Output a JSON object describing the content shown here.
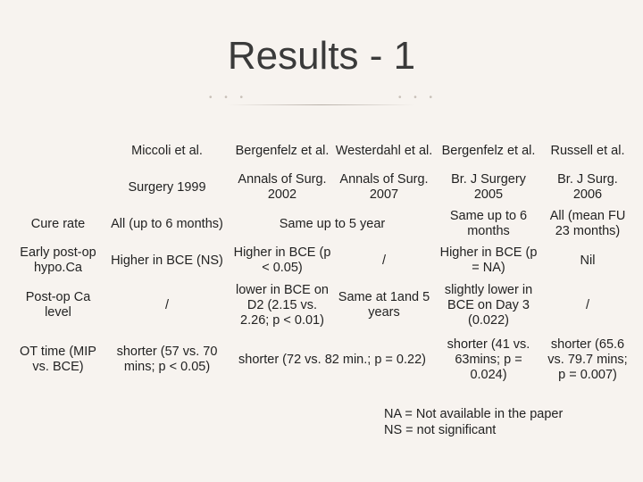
{
  "slide": {
    "title": "Results - 1"
  },
  "table": {
    "header_authors": [
      "Miccoli et al.",
      "Bergenfelz et al.",
      "Westerdahl et al.",
      "Bergenfelz et al.",
      "Russell et al."
    ],
    "header_sources": [
      "Surgery  1999",
      "Annals of Surg. 2002",
      "Annals of Surg. 2007",
      "Br. J Surgery 2005",
      "Br. J Surg. 2006"
    ],
    "rows": [
      {
        "label": "Cure rate",
        "miccoli": "All (up to 6 months)",
        "bergenfelz_westerdahl": "Same up to 5 year",
        "bergenfelz2005": "Same up to 6 months",
        "russell": "All (mean FU 23 months)"
      },
      {
        "label": "Early post-op hypo.Ca",
        "miccoli": "Higher in BCE (NS)",
        "bergenfelz2002": "Higher in BCE (p < 0.05)",
        "westerdahl": "/",
        "bergenfelz2005": "Higher in BCE (p = NA)",
        "russell": "Nil"
      },
      {
        "label": "Post-op Ca level",
        "miccoli": "/",
        "bergenfelz2002": "lower in BCE on D2 (2.15 vs. 2.26; p < 0.01)",
        "westerdahl": "Same at 1and 5 years",
        "bergenfelz2005": "slightly lower in BCE on Day 3 (0.022)",
        "russell": "/"
      },
      {
        "label": "OT time (MIP vs. BCE)",
        "miccoli": "shorter (57 vs. 70 mins; p < 0.05)",
        "bergenfelz_westerdahl": "shorter (72 vs. 82 min.; p = 0.22)",
        "bergenfelz2005": "shorter (41 vs. 63mins; p = 0.024)",
        "russell": "shorter (65.6 vs. 79.7 mins; p = 0.007)"
      }
    ]
  },
  "notes": {
    "na": "NA = Not available in the paper",
    "ns": "NS = not significant"
  }
}
